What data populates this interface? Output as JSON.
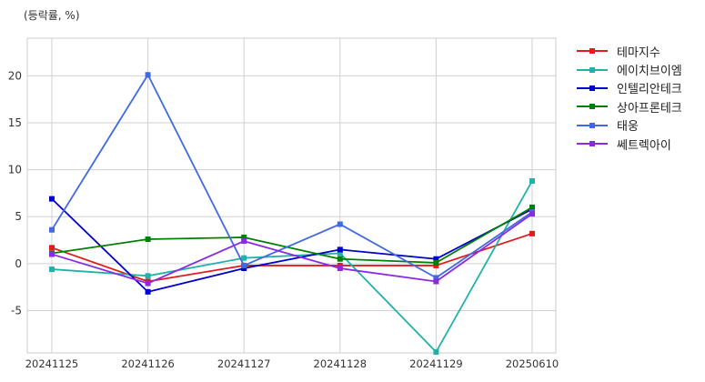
{
  "chart_data": {
    "type": "line",
    "unit_label": "(등락률, %)",
    "categories": [
      "20241125",
      "20241126",
      "20241127",
      "20241128",
      "20241129",
      "20250610"
    ],
    "y_ticks": [
      20,
      15,
      10,
      5,
      0,
      -5
    ],
    "y_tick_labels": [
      "20",
      "15",
      "10",
      "5",
      "0",
      "-5"
    ],
    "ylim": [
      -9.5,
      24
    ],
    "grid": true,
    "legend_position": "right",
    "series": [
      {
        "name": "테마지수",
        "color": "#e41a1c",
        "values": [
          1.7,
          -1.9,
          -0.2,
          -0.2,
          -0.2,
          3.2
        ]
      },
      {
        "name": "에이치브이엠",
        "color": "#20b2aa",
        "values": [
          -0.6,
          -1.3,
          0.6,
          1.1,
          -9.4,
          8.8
        ]
      },
      {
        "name": "인텔리안테크",
        "color": "#0000cd",
        "values": [
          6.9,
          -3.0,
          -0.5,
          1.5,
          0.5,
          5.8
        ]
      },
      {
        "name": "상아프론테크",
        "color": "#008000",
        "values": [
          1.1,
          2.6,
          2.8,
          0.5,
          0.1,
          6.0
        ]
      },
      {
        "name": "태웅",
        "color": "#4169e1",
        "values": [
          3.6,
          20.1,
          -0.2,
          4.2,
          -1.5,
          5.5
        ]
      },
      {
        "name": "쎄트렉아이",
        "color": "#8a2be2",
        "values": [
          1.0,
          -2.1,
          2.4,
          -0.5,
          -1.9,
          5.3
        ]
      }
    ]
  }
}
